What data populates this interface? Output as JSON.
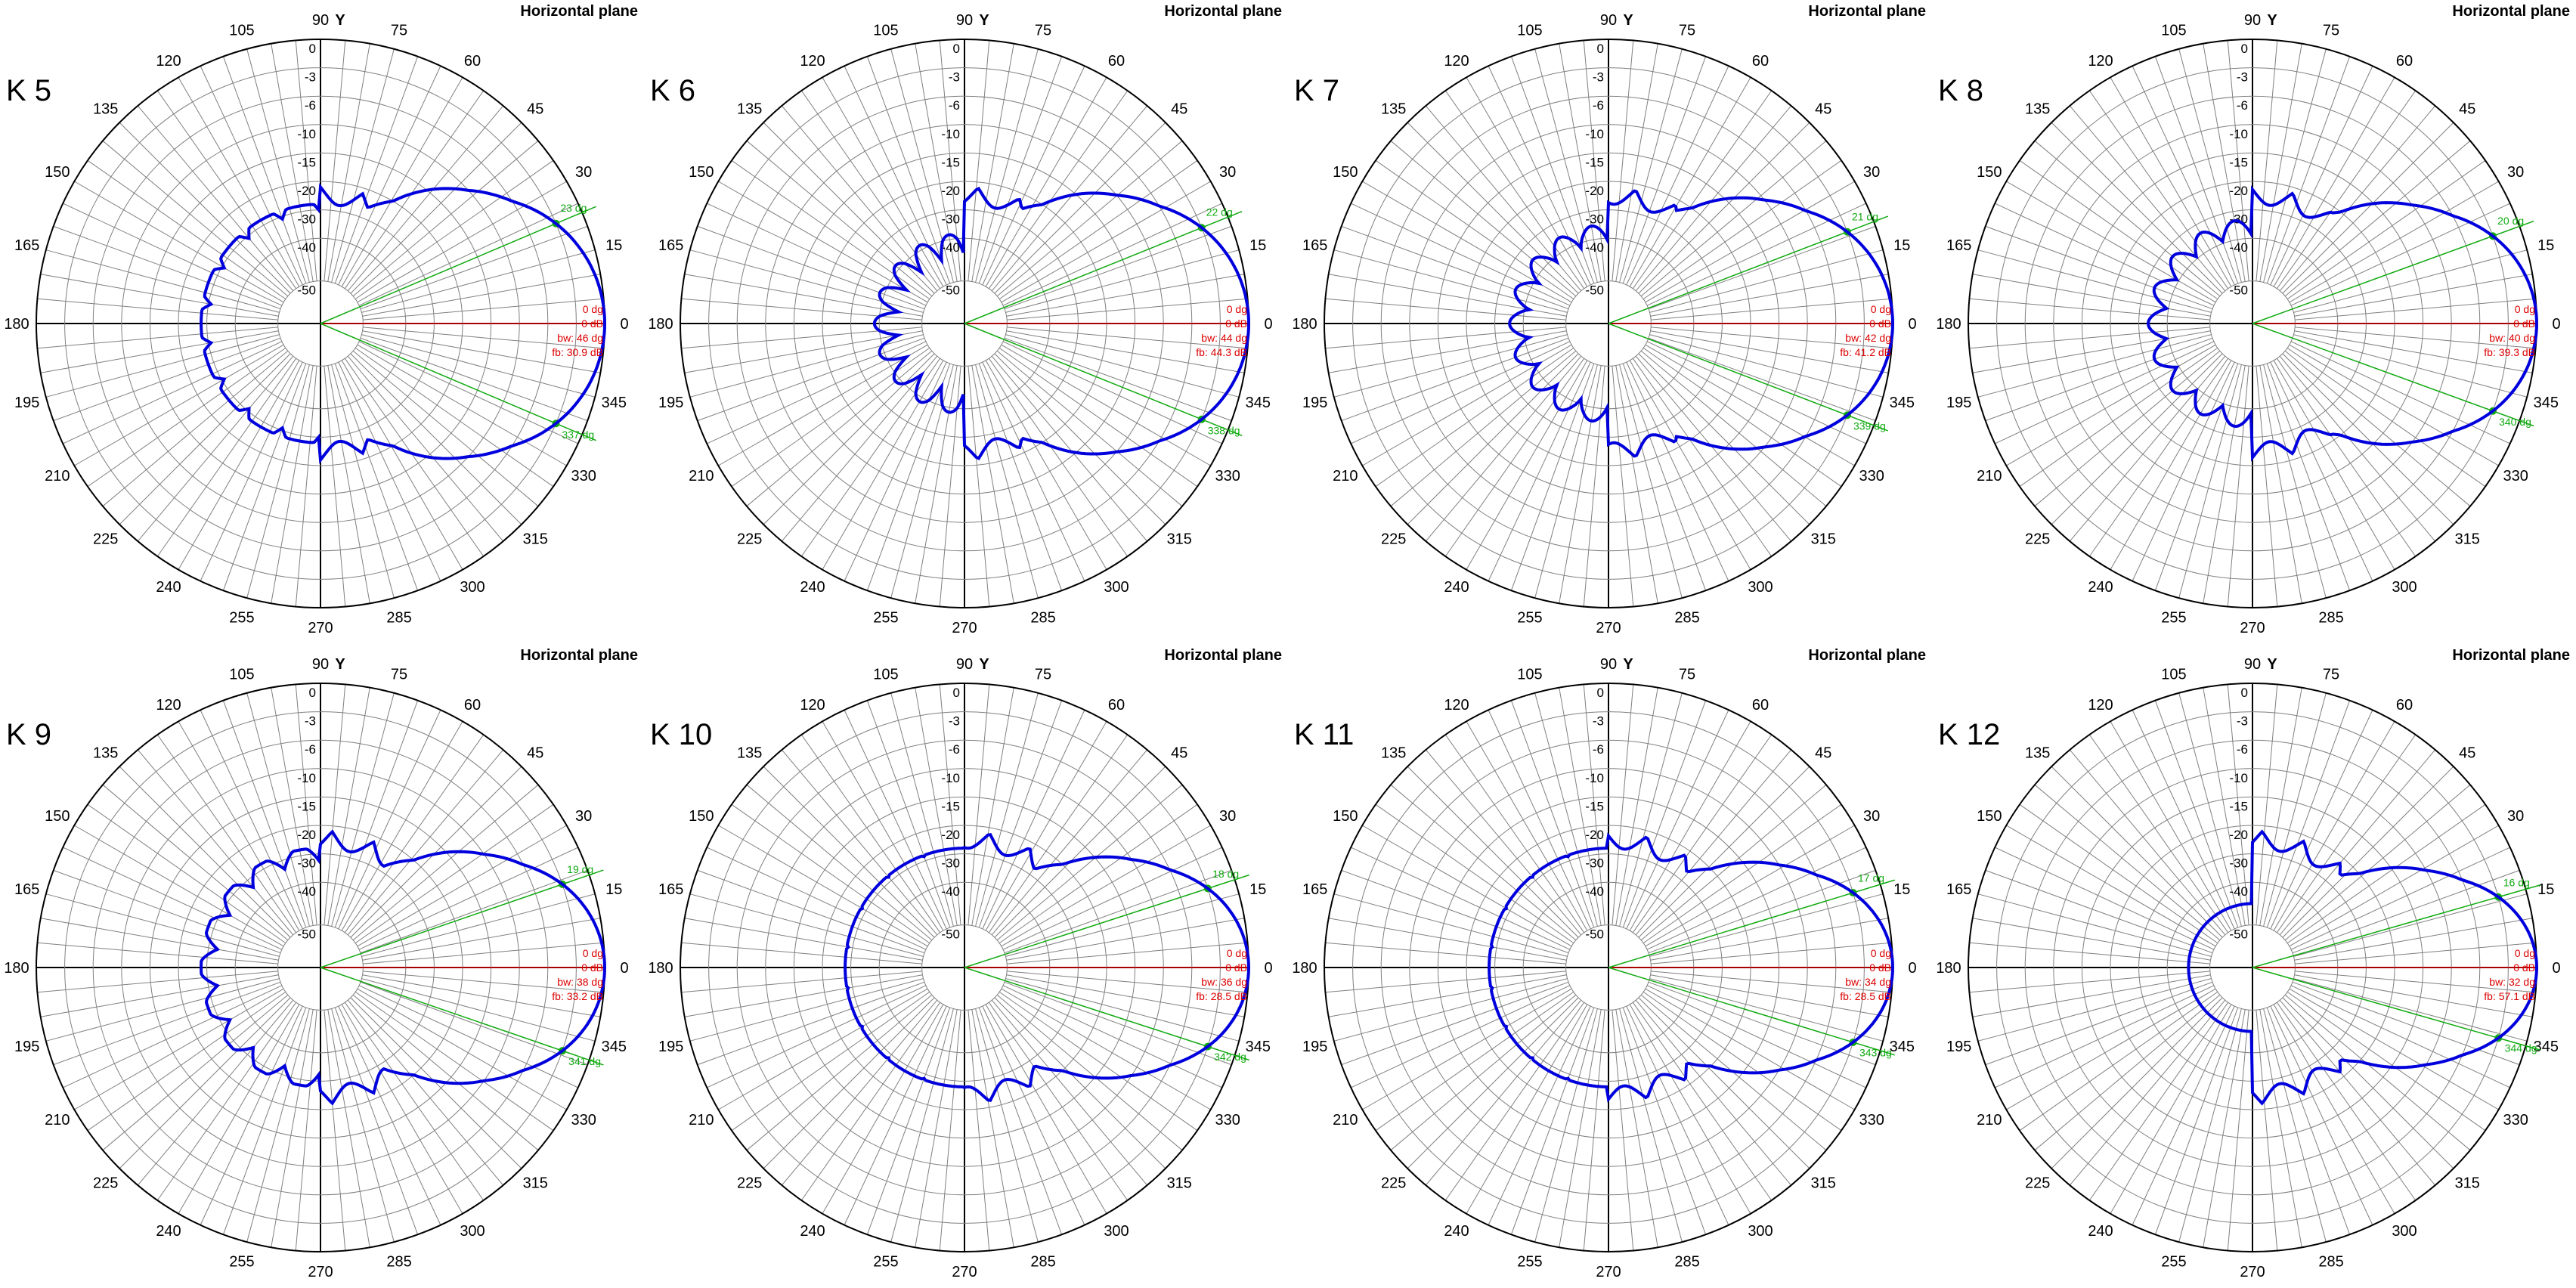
{
  "colors": {
    "grid": "#808080",
    "axis": "#000000",
    "pattern": "#0000dd",
    "beam": "#11aa11",
    "zero_line": "#dd0000"
  },
  "plane_title": "Horizontal plane",
  "axis_label": "Y",
  "angle_ticks": [
    "0",
    "15",
    "30",
    "45",
    "60",
    "75",
    "90",
    "105",
    "120",
    "135",
    "150",
    "165",
    "180",
    "195",
    "210",
    "225",
    "240",
    "255",
    "270",
    "285",
    "300",
    "315",
    "330",
    "345"
  ],
  "db_ticks": [
    "0",
    "-3",
    "-6",
    "-10",
    "-15",
    "-20",
    "-30",
    "-40",
    "-50"
  ],
  "chart_data": [
    {
      "type": "polar",
      "label": "K 5",
      "upper_dg": "23 dg",
      "lower_dg": "337 dg",
      "main_dg": "0 dg",
      "main_db": "0 dB",
      "bw": "bw: 46 dg",
      "fb": "fb: 30.9 dB",
      "upper_angle": 23,
      "lower_angle": 337,
      "beamwidth": 46
    },
    {
      "type": "polar",
      "label": "K 6",
      "upper_dg": "22 dg",
      "lower_dg": "338 dg",
      "main_dg": "0 dg",
      "main_db": "0 dB",
      "bw": "bw: 44 dg",
      "fb": "fb: 44.3 dB",
      "upper_angle": 22,
      "lower_angle": 338,
      "beamwidth": 44
    },
    {
      "type": "polar",
      "label": "K 7",
      "upper_dg": "21 dg",
      "lower_dg": "339 dg",
      "main_dg": "0 dg",
      "main_db": "0 dB",
      "bw": "bw: 42 dg",
      "fb": "fb: 41.2 dB",
      "upper_angle": 21,
      "lower_angle": 339,
      "beamwidth": 42
    },
    {
      "type": "polar",
      "label": "K 8",
      "upper_dg": "20 dg",
      "lower_dg": "340 dg",
      "main_dg": "0 dg",
      "main_db": "0 dB",
      "bw": "bw: 40 dg",
      "fb": "fb: 39.3 dB",
      "upper_angle": 20,
      "lower_angle": 340,
      "beamwidth": 40
    },
    {
      "type": "polar",
      "label": "K 9",
      "upper_dg": "19 dg",
      "lower_dg": "341 dg",
      "main_dg": "0 dg",
      "main_db": "0 dB",
      "bw": "bw: 38 dg",
      "fb": "fb: 33.2 dB",
      "upper_angle": 19,
      "lower_angle": 341,
      "beamwidth": 38
    },
    {
      "type": "polar",
      "label": "K 10",
      "upper_dg": "18 dg",
      "lower_dg": "342 dg",
      "main_dg": "0 dg",
      "main_db": "0 dB",
      "bw": "bw: 36 dg",
      "fb": "fb: 28.5 dB",
      "upper_angle": 18,
      "lower_angle": 342,
      "beamwidth": 36
    },
    {
      "type": "polar",
      "label": "K 11",
      "upper_dg": "17 dg",
      "lower_dg": "343 dg",
      "main_dg": "0 dg",
      "main_db": "0 dB",
      "bw": "bw: 34 dg",
      "fb": "fb: 28.5 dB",
      "upper_angle": 17,
      "lower_angle": 343,
      "beamwidth": 34
    },
    {
      "type": "polar",
      "label": "K 12",
      "upper_dg": "16 dg",
      "lower_dg": "344 dg",
      "main_dg": "0 dg",
      "main_db": "0 dB",
      "bw": "bw: 32 dg",
      "fb": "fb: 57.1 dB",
      "upper_angle": 16,
      "lower_angle": 344,
      "beamwidth": 32
    }
  ]
}
